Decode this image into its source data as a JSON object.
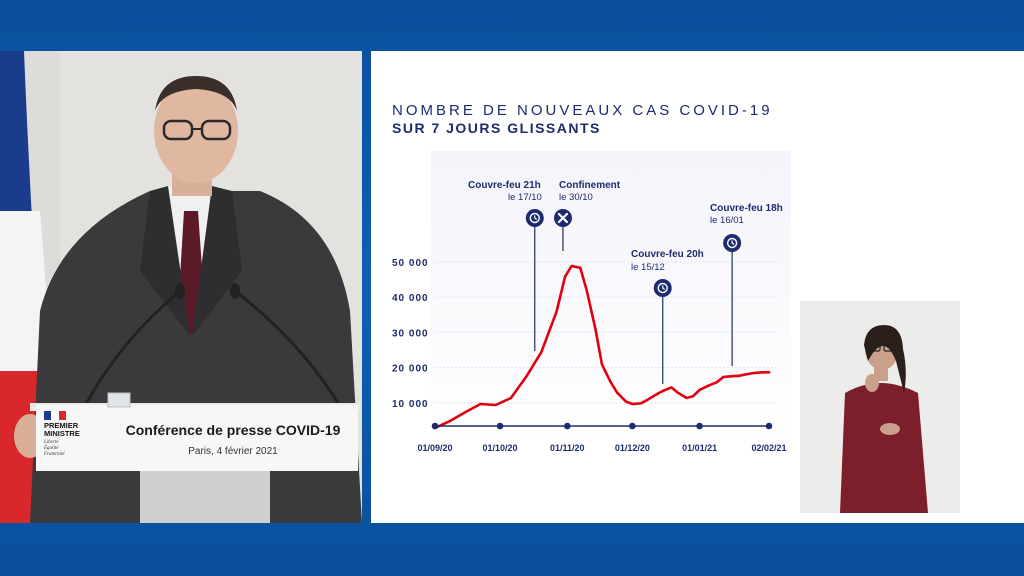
{
  "podium": {
    "logo_line1": "PREMIER",
    "logo_line2": "MINISTRE",
    "motto_1": "Liberté",
    "motto_2": "Égalité",
    "motto_3": "Fraternité",
    "event_title": "Conférence de presse COVID-19",
    "event_place_date": "Paris, 4 février 2021"
  },
  "chart_data": {
    "type": "line",
    "title": "NOMBRE DE NOUVEAUX CAS COVID-19",
    "subtitle": "SUR 7 JOURS GLISSANTS",
    "x_ticks": [
      "01/09/20",
      "01/10/20",
      "01/11/20",
      "01/12/20",
      "01/01/21",
      "02/02/21"
    ],
    "y_ticks": [
      "10 000",
      "20 000",
      "30 000",
      "40 000",
      "50 000"
    ],
    "ylim": [
      0,
      55000
    ],
    "grid": true,
    "line_color": "#e1000f",
    "series": [
      {
        "x": [
          "01/09/20",
          "08/09/20",
          "15/09/20",
          "22/09/20",
          "29/09/20",
          "06/10/20",
          "13/10/20",
          "20/10/20",
          "27/10/20",
          "31/10/20",
          "03/11/20",
          "07/11/20",
          "10/11/20",
          "14/11/20",
          "17/11/20",
          "21/11/20",
          "24/11/20",
          "28/11/20",
          "01/12/20",
          "05/12/20",
          "08/12/20",
          "12/12/20",
          "15/12/20",
          "19/12/20",
          "22/12/20",
          "26/12/20",
          "29/12/20",
          "01/01/21",
          "05/01/21",
          "09/01/21",
          "12/01/21",
          "16/01/21",
          "19/01/21",
          "23/01/21",
          "26/01/21",
          "30/01/21",
          "02/02/21"
        ],
        "values": [
          4000,
          6000,
          8500,
          10800,
          10500,
          12500,
          18500,
          25500,
          37000,
          47000,
          50000,
          49500,
          43000,
          32000,
          22000,
          17000,
          14000,
          11500,
          10800,
          11000,
          12000,
          13500,
          14500,
          15500,
          14000,
          12500,
          13000,
          14800,
          16000,
          17000,
          18500,
          18700,
          18800,
          19300,
          19600,
          19800,
          19800
        ]
      }
    ],
    "annotations": [
      {
        "label": "Couvre-feu 21h",
        "date": "le 17/10",
        "icon": "clock-icon"
      },
      {
        "label": "Confinement",
        "date": "le 30/10",
        "icon": "cross-icon"
      },
      {
        "label": "Couvre-feu 20h",
        "date": "le 15/12",
        "icon": "clock-icon"
      },
      {
        "label": "Couvre-feu 18h",
        "date": "le 16/01",
        "icon": "clock-icon"
      }
    ]
  }
}
